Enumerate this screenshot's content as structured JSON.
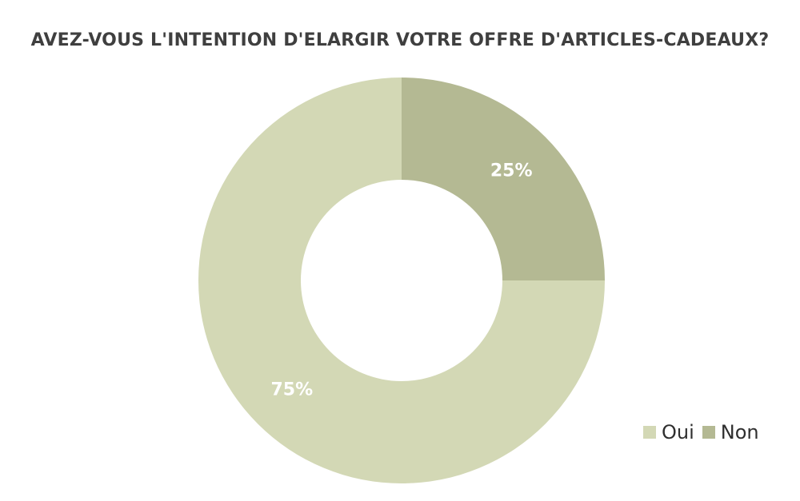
{
  "chart_data": {
    "type": "pie",
    "donut": true,
    "title": "AVEZ-VOUS L'INTENTION D'ELARGIR VOTRE OFFRE D'ARTICLES-CADEAUX?",
    "categories": [
      "Oui",
      "Non"
    ],
    "values": [
      75,
      25
    ],
    "data_labels": [
      "75%",
      "25%"
    ],
    "colors": [
      "#d3d8b5",
      "#b4b993"
    ],
    "legend_position": "bottom-right"
  }
}
